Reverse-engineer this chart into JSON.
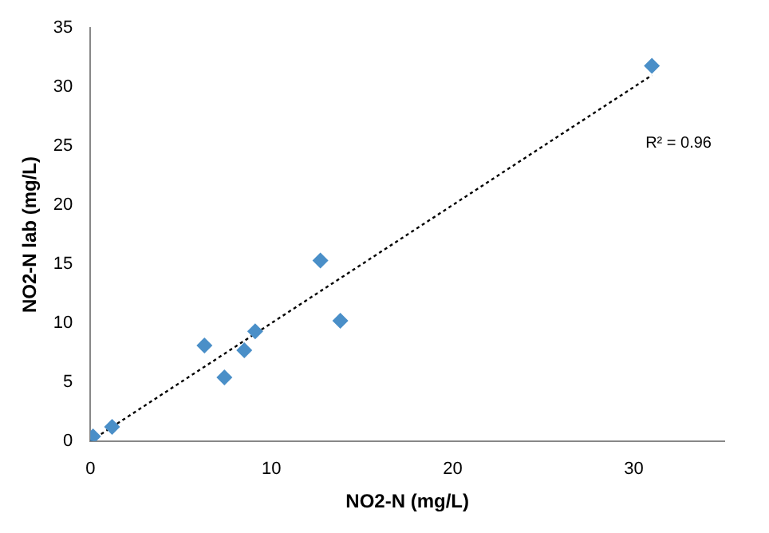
{
  "chart_data": {
    "type": "scatter",
    "xlabel": "NO2-N (mg/L)",
    "ylabel": "NO2-N lab (mg/L)",
    "annotations": [
      "R² = 0.96"
    ],
    "xlim": [
      0,
      35
    ],
    "xticks": [
      0,
      10,
      20,
      30
    ],
    "ylim": [
      0,
      35
    ],
    "yticks": [
      0,
      5,
      10,
      15,
      20,
      25,
      30,
      35
    ],
    "grid": false,
    "legend": false,
    "series": [
      {
        "type": "scatter",
        "color": "#4a8fc8",
        "marker": "diamond",
        "x": [
          0.15,
          1.2,
          6.3,
          7.4,
          8.5,
          9.1,
          12.7,
          13.8,
          31.0
        ],
        "values": [
          0.4,
          1.2,
          8.1,
          5.4,
          7.7,
          9.3,
          15.3,
          10.2,
          31.8
        ]
      },
      {
        "type": "line",
        "color": "#000000",
        "marker": "none",
        "line_style": "dotted",
        "x": [
          0,
          31
        ],
        "values": [
          0,
          31
        ]
      }
    ]
  }
}
